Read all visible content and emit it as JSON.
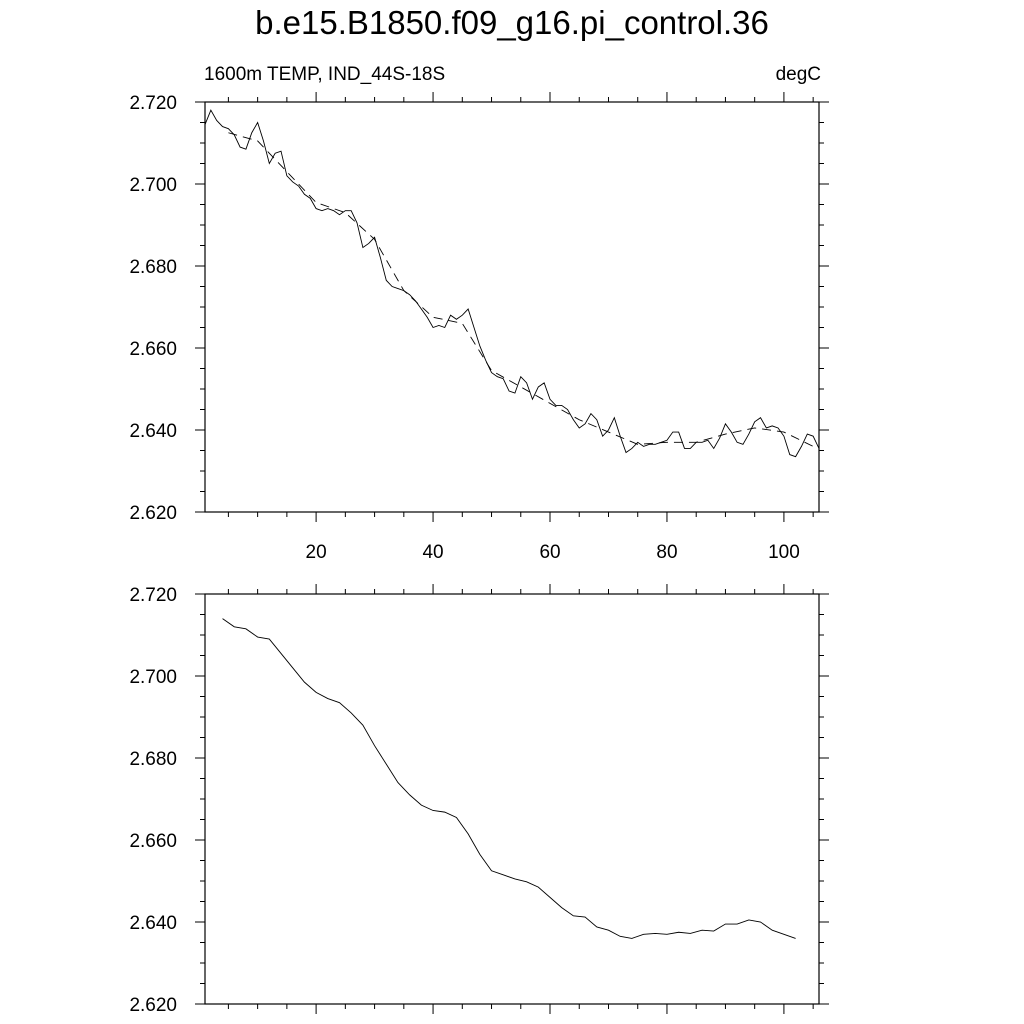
{
  "title": "b.e15.B1850.f09_g16.pi_control.36",
  "panel_label_left": "1600m TEMP, IND_44S-18S",
  "panel_label_right": "degC",
  "chart_data": [
    {
      "type": "line",
      "xlim": [
        1,
        106
      ],
      "ylim": [
        2.62,
        2.72
      ],
      "xticks": [
        20,
        40,
        60,
        80,
        100
      ],
      "xtick_labels": [
        "20",
        "40",
        "60",
        "80",
        "100"
      ],
      "yticks": [
        2.62,
        2.64,
        2.66,
        2.68,
        2.7,
        2.72
      ],
      "ytick_labels": [
        "2.620",
        "2.640",
        "2.660",
        "2.680",
        "2.700",
        "2.720"
      ],
      "grid": false,
      "series": [
        {
          "style": "solid",
          "x": [
            1,
            2,
            3,
            4,
            5,
            6,
            7,
            8,
            9,
            10,
            11,
            12,
            13,
            14,
            15,
            16,
            17,
            18,
            19,
            20,
            21,
            22,
            23,
            24,
            25,
            26,
            27,
            28,
            29,
            30,
            31,
            32,
            33,
            34,
            35,
            36,
            37,
            38,
            39,
            40,
            41,
            42,
            43,
            44,
            45,
            46,
            47,
            48,
            49,
            50,
            51,
            52,
            53,
            54,
            55,
            56,
            57,
            58,
            59,
            60,
            61,
            62,
            63,
            64,
            65,
            66,
            67,
            68,
            69,
            70,
            71,
            72,
            73,
            74,
            75,
            76,
            77,
            78,
            79,
            80,
            81,
            82,
            83,
            84,
            85,
            86,
            87,
            88,
            89,
            90,
            91,
            92,
            93,
            94,
            95,
            96,
            97,
            98,
            99,
            100,
            101,
            102,
            103,
            104,
            105,
            106
          ],
          "y": [
            2.7145,
            2.718,
            2.7155,
            2.714,
            2.7135,
            2.712,
            2.709,
            2.7085,
            2.7125,
            2.715,
            2.7105,
            2.705,
            2.7075,
            2.708,
            2.702,
            2.7005,
            2.6995,
            2.6975,
            2.6965,
            2.694,
            2.6935,
            2.694,
            2.6935,
            2.6925,
            2.6935,
            2.6935,
            2.6905,
            2.6845,
            2.6855,
            2.687,
            2.682,
            2.6765,
            2.675,
            2.6745,
            2.674,
            2.673,
            2.6715,
            2.6695,
            2.6675,
            2.665,
            2.6655,
            2.665,
            2.668,
            2.667,
            2.668,
            2.6695,
            2.665,
            2.6605,
            2.657,
            2.654,
            2.653,
            2.6525,
            2.6495,
            2.649,
            2.653,
            2.6515,
            2.6475,
            2.6505,
            2.6515,
            2.6475,
            2.646,
            2.646,
            2.645,
            2.6425,
            2.6405,
            2.6415,
            2.644,
            2.6425,
            2.6385,
            2.64,
            2.643,
            2.6385,
            2.6345,
            2.6355,
            2.637,
            2.636,
            2.6365,
            2.6365,
            2.637,
            2.6375,
            2.6395,
            2.6395,
            2.6355,
            2.6355,
            2.637,
            2.637,
            2.6375,
            2.6355,
            2.638,
            2.6415,
            2.6395,
            2.637,
            2.6365,
            2.639,
            2.642,
            2.643,
            2.6405,
            2.641,
            2.6405,
            2.6385,
            2.634,
            2.6335,
            2.636,
            2.639,
            2.6385,
            2.6355
          ]
        },
        {
          "style": "dashed",
          "x": [
            5,
            10,
            15,
            20,
            25,
            30,
            35,
            40,
            45,
            50,
            55,
            60,
            65,
            70,
            75,
            80,
            85,
            90,
            95,
            100,
            105
          ],
          "y": [
            2.7125,
            2.7105,
            2.703,
            2.6955,
            2.693,
            2.6865,
            2.674,
            2.6675,
            2.666,
            2.6545,
            2.6505,
            2.6465,
            2.6425,
            2.6395,
            2.6365,
            2.637,
            2.637,
            2.639,
            2.6405,
            2.6395,
            2.636
          ]
        }
      ]
    },
    {
      "type": "line",
      "xlim": [
        1,
        106
      ],
      "ylim": [
        2.62,
        2.72
      ],
      "xticks": [
        20,
        40,
        60,
        80,
        100
      ],
      "yticks": [
        2.62,
        2.64,
        2.66,
        2.68,
        2.7,
        2.72
      ],
      "ytick_labels": [
        "2.620",
        "2.640",
        "2.660",
        "2.680",
        "2.700",
        "2.720"
      ],
      "grid": false,
      "series": [
        {
          "style": "solid",
          "x": [
            4,
            6,
            8,
            10,
            12,
            14,
            16,
            18,
            20,
            22,
            24,
            26,
            28,
            30,
            32,
            34,
            36,
            38,
            40,
            42,
            44,
            46,
            48,
            50,
            52,
            54,
            56,
            58,
            60,
            62,
            64,
            66,
            68,
            70,
            72,
            74,
            76,
            78,
            80,
            82,
            84,
            86,
            88,
            90,
            92,
            94,
            96,
            98,
            100,
            102
          ],
          "y": [
            2.714,
            2.712,
            2.7115,
            2.7095,
            2.709,
            2.7055,
            2.702,
            2.6985,
            2.696,
            2.6945,
            2.6935,
            2.691,
            2.688,
            2.683,
            2.6785,
            2.674,
            2.671,
            2.6685,
            2.6672,
            2.6668,
            2.6655,
            2.6615,
            2.6565,
            2.6525,
            2.6515,
            2.6505,
            2.6498,
            2.6485,
            2.646,
            2.6435,
            2.6415,
            2.6412,
            2.6388,
            2.638,
            2.6365,
            2.636,
            2.637,
            2.6372,
            2.637,
            2.6375,
            2.6372,
            2.638,
            2.6378,
            2.6395,
            2.6395,
            2.6405,
            2.64,
            2.638,
            2.637,
            2.636
          ]
        }
      ]
    }
  ]
}
